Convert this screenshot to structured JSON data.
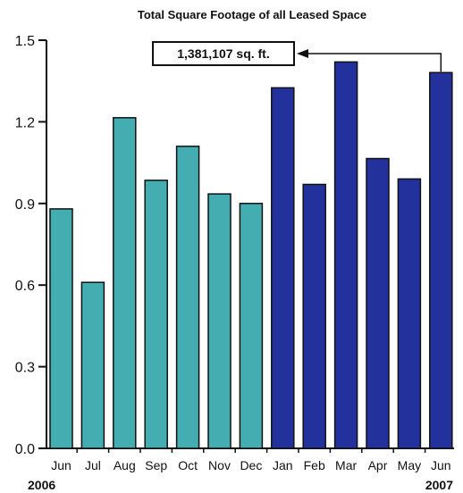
{
  "chart_data": {
    "type": "bar",
    "title": "Total Square Footage of all Leased Space",
    "xlabel": "",
    "ylabel": "",
    "ylim": [
      0,
      1.5
    ],
    "yticks": [
      "0.0",
      "0.3",
      "0.6",
      "0.9",
      "1.2",
      "1.5"
    ],
    "categories": [
      "Jun",
      "Jul",
      "Aug",
      "Sep",
      "Oct",
      "Nov",
      "Dec",
      "Jan",
      "Feb",
      "Mar",
      "Apr",
      "May",
      "Jun"
    ],
    "values": [
      0.88,
      0.61,
      1.215,
      0.985,
      1.11,
      0.935,
      0.9,
      1.325,
      0.97,
      1.42,
      1.065,
      0.99,
      1.381
    ],
    "series_groups": [
      {
        "label": "2006",
        "start": 0,
        "end": 6,
        "color": "#44adb1"
      },
      {
        "label": "2007",
        "start": 7,
        "end": 12,
        "color": "#23319c"
      }
    ],
    "year_labels": {
      "left": "2006",
      "right": "2007"
    },
    "callout": {
      "text": "1,381,107 sq. ft.",
      "target_index": 12
    },
    "grid": false
  }
}
